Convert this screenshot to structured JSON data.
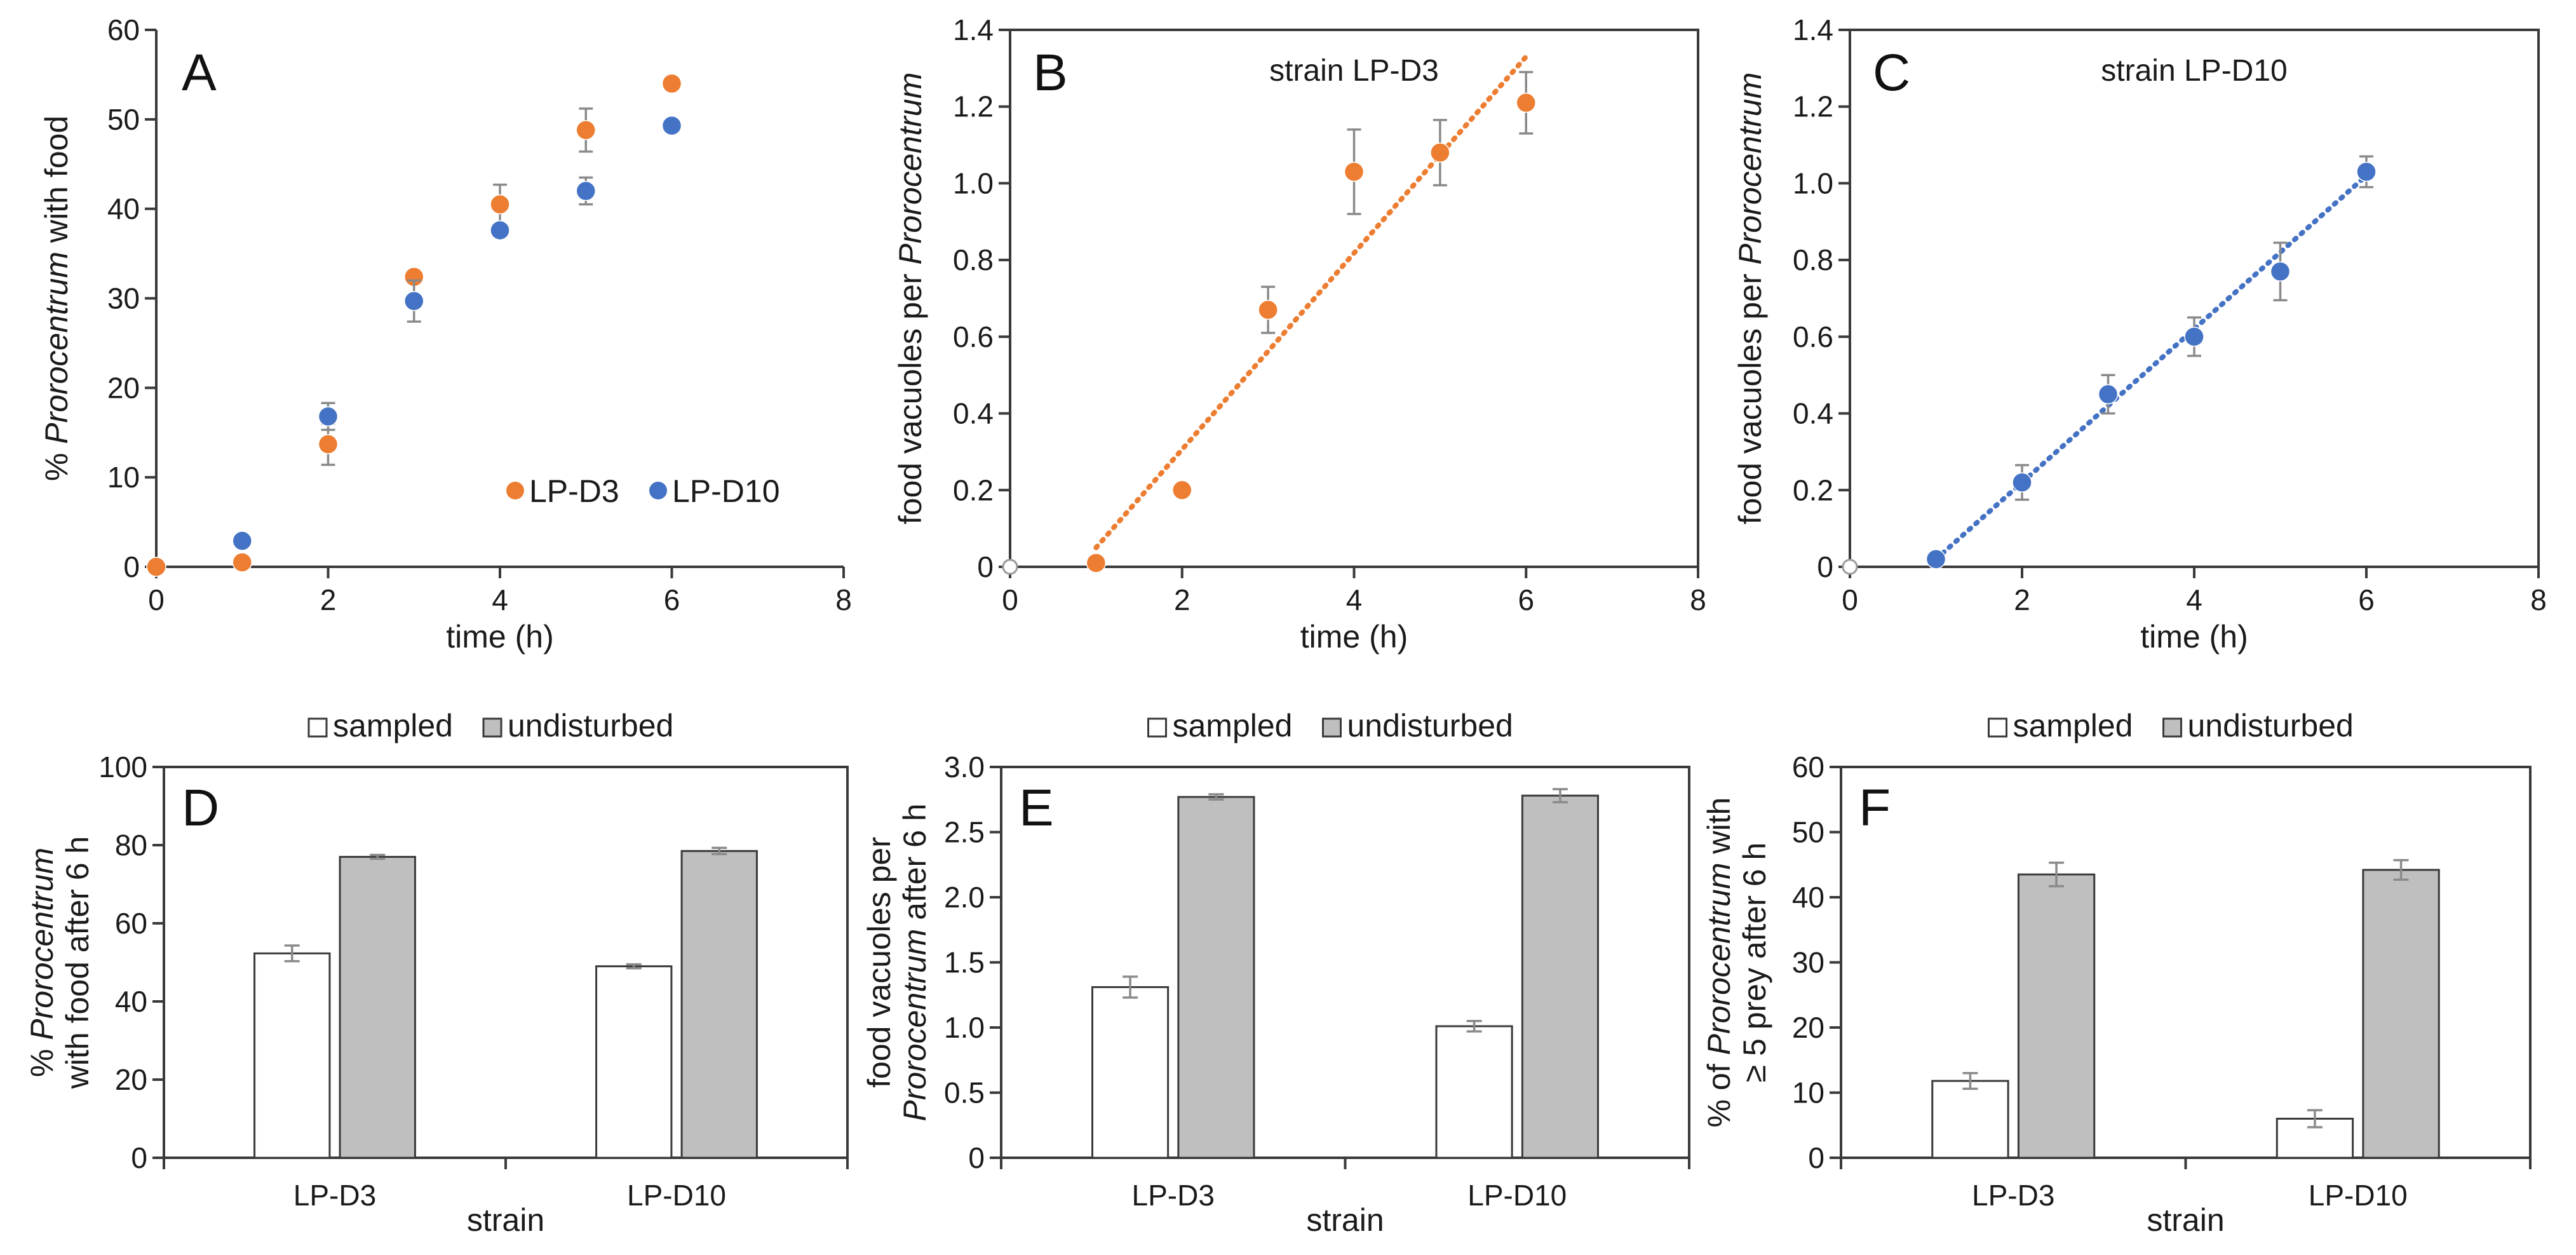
{
  "colors": {
    "orange": "#ED7D31",
    "blue": "#4472C4",
    "bar_sampled": "#FFFFFF",
    "bar_undisturbed": "#BFBFBF",
    "axis": "#3A3A3A"
  },
  "chart_data": [
    {
      "id": "A",
      "type": "scatter",
      "letter": "A",
      "xlabel": "time (h)",
      "ylabel_parts": [
        "% ",
        "Prorocentrum",
        " with food"
      ],
      "xlim": [
        0,
        8
      ],
      "ylim": [
        0,
        60
      ],
      "xticks": [
        "0",
        "2",
        "4",
        "6",
        "8"
      ],
      "yticks": [
        "0",
        "10",
        "20",
        "30",
        "40",
        "50",
        "60"
      ],
      "legend": [
        {
          "name": "LP-D3",
          "color": "#ED7D31"
        },
        {
          "name": "LP-D10",
          "color": "#4472C4"
        }
      ],
      "series": [
        {
          "name": "LP-D3",
          "color": "#ED7D31",
          "x": [
            0,
            1,
            2,
            3,
            4,
            5,
            6
          ],
          "y": [
            0,
            0.5,
            13.7,
            32.4,
            40.5,
            48.8,
            54
          ],
          "err": [
            0,
            0,
            2.3,
            0,
            2.2,
            2.4,
            0
          ]
        },
        {
          "name": "LP-D10",
          "color": "#4472C4",
          "x": [
            1,
            2,
            3,
            4,
            5,
            6
          ],
          "y": [
            2.9,
            16.8,
            29.7,
            37.6,
            42,
            49.3
          ],
          "err": [
            0,
            1.5,
            2.3,
            0,
            1.5,
            0
          ]
        }
      ]
    },
    {
      "id": "B",
      "type": "scatter",
      "letter": "B",
      "annotation": "strain LP-D3",
      "xlabel": "time (h)",
      "ylabel_parts": [
        "food vacuoles per ",
        "Prorocentrum",
        ""
      ],
      "xlim": [
        0,
        8
      ],
      "ylim": [
        0,
        1.4
      ],
      "xticks": [
        "0",
        "2",
        "4",
        "6",
        "8"
      ],
      "yticks": [
        "0",
        "0.2",
        "0.4",
        "0.6",
        "0.8",
        "1.0",
        "1.2",
        "1.4"
      ],
      "series": [
        {
          "name": "LP-D3",
          "color": "#ED7D31",
          "x": [
            1,
            2,
            3,
            4,
            5,
            6
          ],
          "y": [
            0.01,
            0.2,
            0.67,
            1.03,
            1.08,
            1.21
          ],
          "err": [
            0,
            0,
            0.06,
            0.11,
            0.085,
            0.08
          ]
        }
      ],
      "origin_marker": {
        "x": 0,
        "y": 0
      },
      "trendline": {
        "x": [
          1,
          6
        ],
        "y": [
          0.05,
          1.33
        ],
        "color": "#ED7D31"
      }
    },
    {
      "id": "C",
      "type": "scatter",
      "letter": "C",
      "annotation": "strain LP-D10",
      "xlabel": "time (h)",
      "ylabel_parts": [
        "food vacuoles per ",
        "Prorocentrum",
        ""
      ],
      "xlim": [
        0,
        8
      ],
      "ylim": [
        0,
        1.4
      ],
      "xticks": [
        "0",
        "2",
        "4",
        "6",
        "8"
      ],
      "yticks": [
        "0",
        "0.2",
        "0.4",
        "0.6",
        "0.8",
        "1.0",
        "1.2",
        "1.4"
      ],
      "series": [
        {
          "name": "LP-D10",
          "color": "#4472C4",
          "x": [
            1,
            2,
            3,
            4,
            5,
            6
          ],
          "y": [
            0.02,
            0.22,
            0.45,
            0.6,
            0.77,
            1.03
          ],
          "err": [
            0,
            0.045,
            0.05,
            0.05,
            0.075,
            0.04
          ]
        }
      ],
      "origin_marker": {
        "x": 0,
        "y": 0
      },
      "trendline": {
        "x": [
          1,
          6
        ],
        "y": [
          0.02,
          1.02
        ],
        "color": "#4472C4"
      }
    },
    {
      "id": "D",
      "type": "bar",
      "letter": "D",
      "xlabel": "strain",
      "ylabel_lines": [
        [
          "% ",
          "Prorocentrum",
          ""
        ],
        [
          "with food after 6 h",
          "",
          ""
        ]
      ],
      "ylim": [
        0,
        100
      ],
      "yticks": [
        "0",
        "20",
        "40",
        "60",
        "80",
        "100"
      ],
      "categories": [
        "LP-D3",
        "LP-D10"
      ],
      "legend": [
        {
          "name": "sampled",
          "color": "#FFFFFF"
        },
        {
          "name": "undisturbed",
          "color": "#BFBFBF"
        }
      ],
      "series": [
        {
          "name": "sampled",
          "color": "#FFFFFF",
          "values": [
            52.3,
            49
          ],
          "err": [
            2,
            0.5
          ]
        },
        {
          "name": "undisturbed",
          "color": "#BFBFBF",
          "values": [
            77,
            78.5
          ],
          "err": [
            0.5,
            0.8
          ]
        }
      ]
    },
    {
      "id": "E",
      "type": "bar",
      "letter": "E",
      "xlabel": "strain",
      "ylabel_lines": [
        [
          "food vacuoles per",
          "",
          ""
        ],
        [
          "",
          "Prorocentrum",
          " after 6 h"
        ]
      ],
      "ylim": [
        0,
        3.0
      ],
      "yticks": [
        "0",
        "0.5",
        "1.0",
        "1.5",
        "2.0",
        "2.5",
        "3.0"
      ],
      "categories": [
        "LP-D3",
        "LP-D10"
      ],
      "legend": [
        {
          "name": "sampled",
          "color": "#FFFFFF"
        },
        {
          "name": "undisturbed",
          "color": "#BFBFBF"
        }
      ],
      "series": [
        {
          "name": "sampled",
          "color": "#FFFFFF",
          "values": [
            1.31,
            1.01
          ],
          "err": [
            0.08,
            0.04
          ]
        },
        {
          "name": "undisturbed",
          "color": "#BFBFBF",
          "values": [
            2.77,
            2.78
          ],
          "err": [
            0.02,
            0.05
          ]
        }
      ]
    },
    {
      "id": "F",
      "type": "bar",
      "letter": "F",
      "xlabel": "strain",
      "ylabel_lines": [
        [
          "% of ",
          "Prorocentrum",
          " with"
        ],
        [
          "≥ 5 prey after 6 h",
          "",
          ""
        ]
      ],
      "ylim": [
        0,
        60
      ],
      "yticks": [
        "0",
        "10",
        "20",
        "30",
        "40",
        "50",
        "60"
      ],
      "categories": [
        "LP-D3",
        "LP-D10"
      ],
      "legend": [
        {
          "name": "sampled",
          "color": "#FFFFFF"
        },
        {
          "name": "undisturbed",
          "color": "#BFBFBF"
        }
      ],
      "series": [
        {
          "name": "sampled",
          "color": "#FFFFFF",
          "values": [
            11.8,
            6
          ],
          "err": [
            1.2,
            1.3
          ]
        },
        {
          "name": "undisturbed",
          "color": "#BFBFBF",
          "values": [
            43.5,
            44.2
          ],
          "err": [
            1.8,
            1.5
          ]
        }
      ]
    }
  ]
}
